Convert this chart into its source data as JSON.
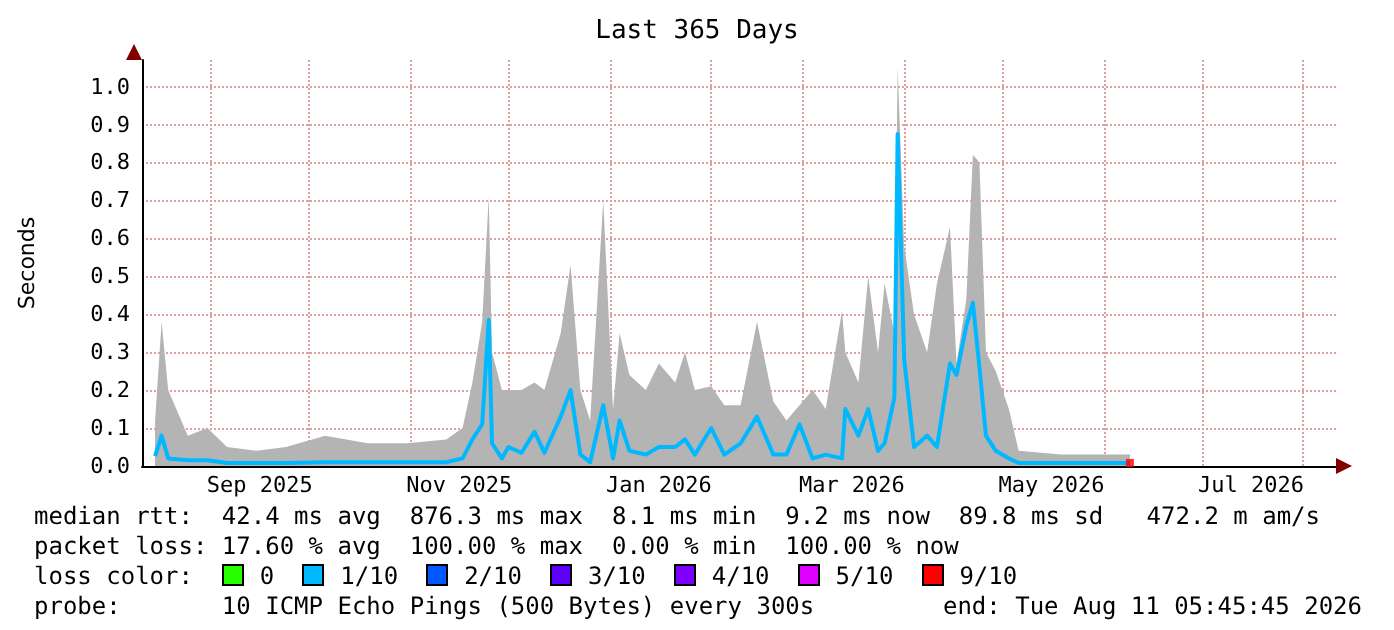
{
  "chart_data": {
    "type": "area",
    "title": "Last 365 Days",
    "ylabel": "Seconds",
    "xlim": [
      "2025-08-11",
      "2026-08-11"
    ],
    "xticks": [
      {
        "value": "2025-09-01",
        "label": null
      },
      {
        "value": "2025-09-16",
        "label": "Sep 2025"
      },
      {
        "value": "2025-10-01",
        "label": null
      },
      {
        "value": "2025-11-01",
        "label": null
      },
      {
        "value": "2025-11-16",
        "label": "Nov 2025"
      },
      {
        "value": "2025-12-01",
        "label": null
      },
      {
        "value": "2026-01-01",
        "label": null
      },
      {
        "value": "2026-01-16",
        "label": "Jan 2026"
      },
      {
        "value": "2026-02-01",
        "label": null
      },
      {
        "value": "2026-03-01",
        "label": null
      },
      {
        "value": "2026-03-16",
        "label": "Mar 2026"
      },
      {
        "value": "2026-04-01",
        "label": null
      },
      {
        "value": "2026-05-01",
        "label": null
      },
      {
        "value": "2026-05-16",
        "label": "May 2026"
      },
      {
        "value": "2026-06-01",
        "label": null
      },
      {
        "value": "2026-07-01",
        "label": null
      },
      {
        "value": "2026-07-16",
        "label": "Jul 2026"
      },
      {
        "value": "2026-08-01",
        "label": null
      }
    ],
    "ylim": [
      0,
      1.07
    ],
    "yticks": [
      {
        "value": 0,
        "label": "0.0"
      },
      {
        "value": 0.1,
        "label": "0.1"
      },
      {
        "value": 0.2,
        "label": "0.2"
      },
      {
        "value": 0.3,
        "label": "0.3"
      },
      {
        "value": 0.4,
        "label": "0.4"
      },
      {
        "value": 0.5,
        "label": "0.5"
      },
      {
        "value": 0.6,
        "label": "0.6"
      },
      {
        "value": 0.7,
        "label": "0.7"
      },
      {
        "value": 0.8,
        "label": "0.8"
      },
      {
        "value": 0.9,
        "label": "0.9"
      },
      {
        "value": 1.0,
        "label": "1.0"
      }
    ],
    "x": [
      "2025-08-15",
      "2025-08-17",
      "2025-08-19",
      "2025-08-25",
      "2025-08-31",
      "2025-09-06",
      "2025-09-15",
      "2025-09-24",
      "2025-10-06",
      "2025-10-19",
      "2025-10-31",
      "2025-11-12",
      "2025-11-17",
      "2025-11-20",
      "2025-11-23",
      "2025-11-25",
      "2025-11-26",
      "2025-11-29",
      "2025-12-01",
      "2025-12-05",
      "2025-12-09",
      "2025-12-12",
      "2025-12-17",
      "2025-12-20",
      "2025-12-23",
      "2025-12-26",
      "2025-12-30",
      "2026-01-02",
      "2026-01-04",
      "2026-01-07",
      "2026-01-12",
      "2026-01-16",
      "2026-01-21",
      "2026-01-24",
      "2026-01-27",
      "2026-02-01",
      "2026-02-05",
      "2026-02-10",
      "2026-02-15",
      "2026-02-20",
      "2026-02-24",
      "2026-02-28",
      "2026-03-04",
      "2026-03-08",
      "2026-03-13",
      "2026-03-14",
      "2026-03-18",
      "2026-03-21",
      "2026-03-24",
      "2026-03-26",
      "2026-03-29",
      "2026-03-30",
      "2026-04-01",
      "2026-04-04",
      "2026-04-08",
      "2026-04-11",
      "2026-04-15",
      "2026-04-17",
      "2026-04-20",
      "2026-04-22",
      "2026-04-24",
      "2026-04-26",
      "2026-04-29",
      "2026-05-03",
      "2026-05-06",
      "2026-05-19",
      "2026-05-31",
      "2026-06-09"
    ],
    "series": [
      {
        "color": "#b4b4b4",
        "values": [
          0.12,
          0.38,
          0.2,
          0.08,
          0.1,
          0.05,
          0.04,
          0.05,
          0.08,
          0.06,
          0.06,
          0.07,
          0.1,
          0.22,
          0.38,
          0.71,
          0.3,
          0.2,
          0.2,
          0.2,
          0.22,
          0.2,
          0.35,
          0.53,
          0.2,
          0.12,
          0.7,
          0.15,
          0.35,
          0.24,
          0.2,
          0.27,
          0.22,
          0.3,
          0.2,
          0.21,
          0.16,
          0.16,
          0.38,
          0.17,
          0.12,
          0.16,
          0.2,
          0.15,
          0.41,
          0.3,
          0.22,
          0.5,
          0.3,
          0.48,
          0.35,
          1.05,
          0.58,
          0.4,
          0.3,
          0.48,
          0.63,
          0.27,
          0.44,
          0.82,
          0.8,
          0.3,
          0.25,
          0.15,
          0.04,
          0.03,
          0.03,
          0.03
        ]
      },
      {
        "type": "line",
        "color": "#00b8ff",
        "marker": "none",
        "values": [
          0.026,
          0.08,
          0.02,
          0.015,
          0.015,
          0.008,
          0.008,
          0.008,
          0.01,
          0.01,
          0.01,
          0.01,
          0.02,
          0.07,
          0.11,
          0.385,
          0.06,
          0.02,
          0.05,
          0.035,
          0.09,
          0.035,
          0.13,
          0.2,
          0.03,
          0.01,
          0.16,
          0.02,
          0.12,
          0.04,
          0.03,
          0.05,
          0.05,
          0.07,
          0.03,
          0.1,
          0.03,
          0.06,
          0.13,
          0.03,
          0.03,
          0.11,
          0.02,
          0.03,
          0.02,
          0.15,
          0.08,
          0.15,
          0.04,
          0.06,
          0.18,
          0.875,
          0.28,
          0.05,
          0.08,
          0.05,
          0.27,
          0.24,
          0.37,
          0.43,
          0.26,
          0.08,
          0.04,
          0.02,
          0.008,
          0.008,
          0.008,
          0.008
        ]
      },
      {
        "type": "scatter",
        "color": "#ff0000",
        "marker": "square",
        "x": [
          "2026-06-09"
        ],
        "values": [
          0.008
        ]
      }
    ],
    "grid": true,
    "annotations": [
      "median rtt:  42.4 ms avg  876.3 ms max  8.1 ms min  9.2 ms now  89.8 ms sd   472.2 m am/s",
      "packet loss: 17.60 % avg  100.00 % max  0.00 % min  100.00 % now",
      "loss color:",
      "0",
      "1/10",
      "2/10",
      "3/10",
      "4/10",
      "5/10",
      "9/10",
      "probe:       10 ICMP Echo Pings (500 Bytes) every 300s",
      "end: Tue Aug 11 05:45:45 2026"
    ]
  }
}
